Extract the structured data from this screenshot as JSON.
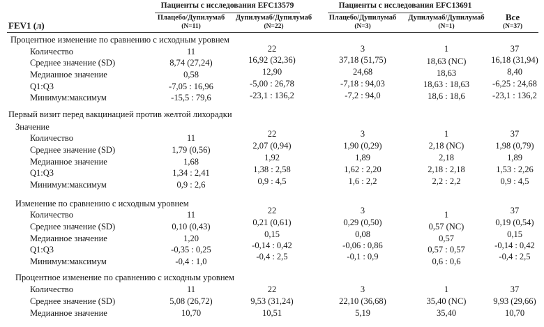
{
  "header": {
    "fev_label": "FEV1 (л)",
    "group_efc13579": "Пациенты с исследования EFC13579",
    "group_efc13691": "Пациенты с исследования EFC13691",
    "all_label": "Все",
    "columns": [
      {
        "title": "Плацебо/Дупилумаб",
        "n": "(N=11)"
      },
      {
        "title": "Дупилумаб/Дупилумаб",
        "n": "(N=22)"
      },
      {
        "title": "Плацебо/Дупилумаб",
        "n": "(N=3)"
      },
      {
        "title": "Дупилумаб/Дупилумаб",
        "n": "(N=1)"
      },
      {
        "title": "",
        "n": "(N=37)"
      }
    ]
  },
  "sections": {
    "s1_title": "Процентное изменение по сравнению с исходным уровнем",
    "s2_title": "Первый визит перед вакцинацией против желтой лихорадки",
    "s2_sub": "Значение",
    "s3_title": "Изменение по сравнению с исходным уровнем",
    "s4_title": "Процентное изменение по сравнению с исходным уровнем"
  },
  "row_labels": {
    "count": "Количество",
    "mean": "Среднее значение (SD)",
    "median": "Медианное значение",
    "q": "Q1:Q3",
    "minmax": "Минимум:максимум"
  },
  "s1": {
    "count": [
      "11",
      "22",
      "3",
      "1",
      "37"
    ],
    "mean": [
      "8,74 (27,24)",
      "16,92 (32,36)",
      "37,18 (51,75)",
      "18,63 (NC)",
      "16,18 (31,94)"
    ],
    "median": [
      "0,58",
      "12,90",
      "24,68",
      "18,63",
      "8,40"
    ],
    "q": [
      "-7,05 : 16,96",
      "-5,00 : 26,78",
      "-7,18 : 94,03",
      "18,63 : 18,63",
      "-6,25 : 24,68"
    ],
    "minmax": [
      "-15,5 : 79,6",
      "-23,1 : 136,2",
      "-7,2 : 94,0",
      "18,6 : 18,6",
      "-23,1 : 136,2"
    ]
  },
  "s2": {
    "count": [
      "11",
      "22",
      "3",
      "1",
      "37"
    ],
    "mean": [
      "1,79 (0,56)",
      "2,07 (0,94)",
      "1,90 (0,29)",
      "2,18 (NC)",
      "1,98 (0,79)"
    ],
    "median": [
      "1,68",
      "1,92",
      "1,89",
      "2,18",
      "1,89"
    ],
    "q": [
      "1,34 : 2,41",
      "1,38 : 2,58",
      "1,62 : 2,20",
      "2,18 : 2,18",
      "1,53 : 2,26"
    ],
    "minmax": [
      "0,9 : 2,6",
      "0,9 : 4,5",
      "1,6 : 2,2",
      "2,2 : 2,2",
      "0,9 : 4,5"
    ]
  },
  "s3": {
    "count": [
      "11",
      "22",
      "3",
      "1",
      "37"
    ],
    "mean": [
      "0,10 (0,43)",
      "0,21 (0,61)",
      "0,29 (0,50)",
      "0,57 (NC)",
      "0,19 (0,54)"
    ],
    "median": [
      "1,20",
      "0,15",
      "0,08",
      "0,57",
      "0,15"
    ],
    "q": [
      "-0,35 : 0,25",
      "-0,14 : 0,42",
      "-0,06 : 0,86",
      "0,57 : 0,57",
      "-0,14 : 0,42"
    ],
    "minmax": [
      "-0,4 : 1,0",
      "-0,4 : 2,5",
      "-0,1 : 0,9",
      "0,6 : 0,6",
      "-0,4 : 2,5"
    ]
  },
  "s4": {
    "count": [
      "11",
      "22",
      "3",
      "1",
      "37"
    ],
    "mean": [
      "5,08 (26,72)",
      "9,53 (31,24)",
      "22,10 (36,68)",
      "35,40 (NC)",
      "9,93 (29,66)"
    ],
    "median": [
      "10,70",
      "10,51",
      "5,19",
      "35,40",
      "10,70"
    ]
  }
}
